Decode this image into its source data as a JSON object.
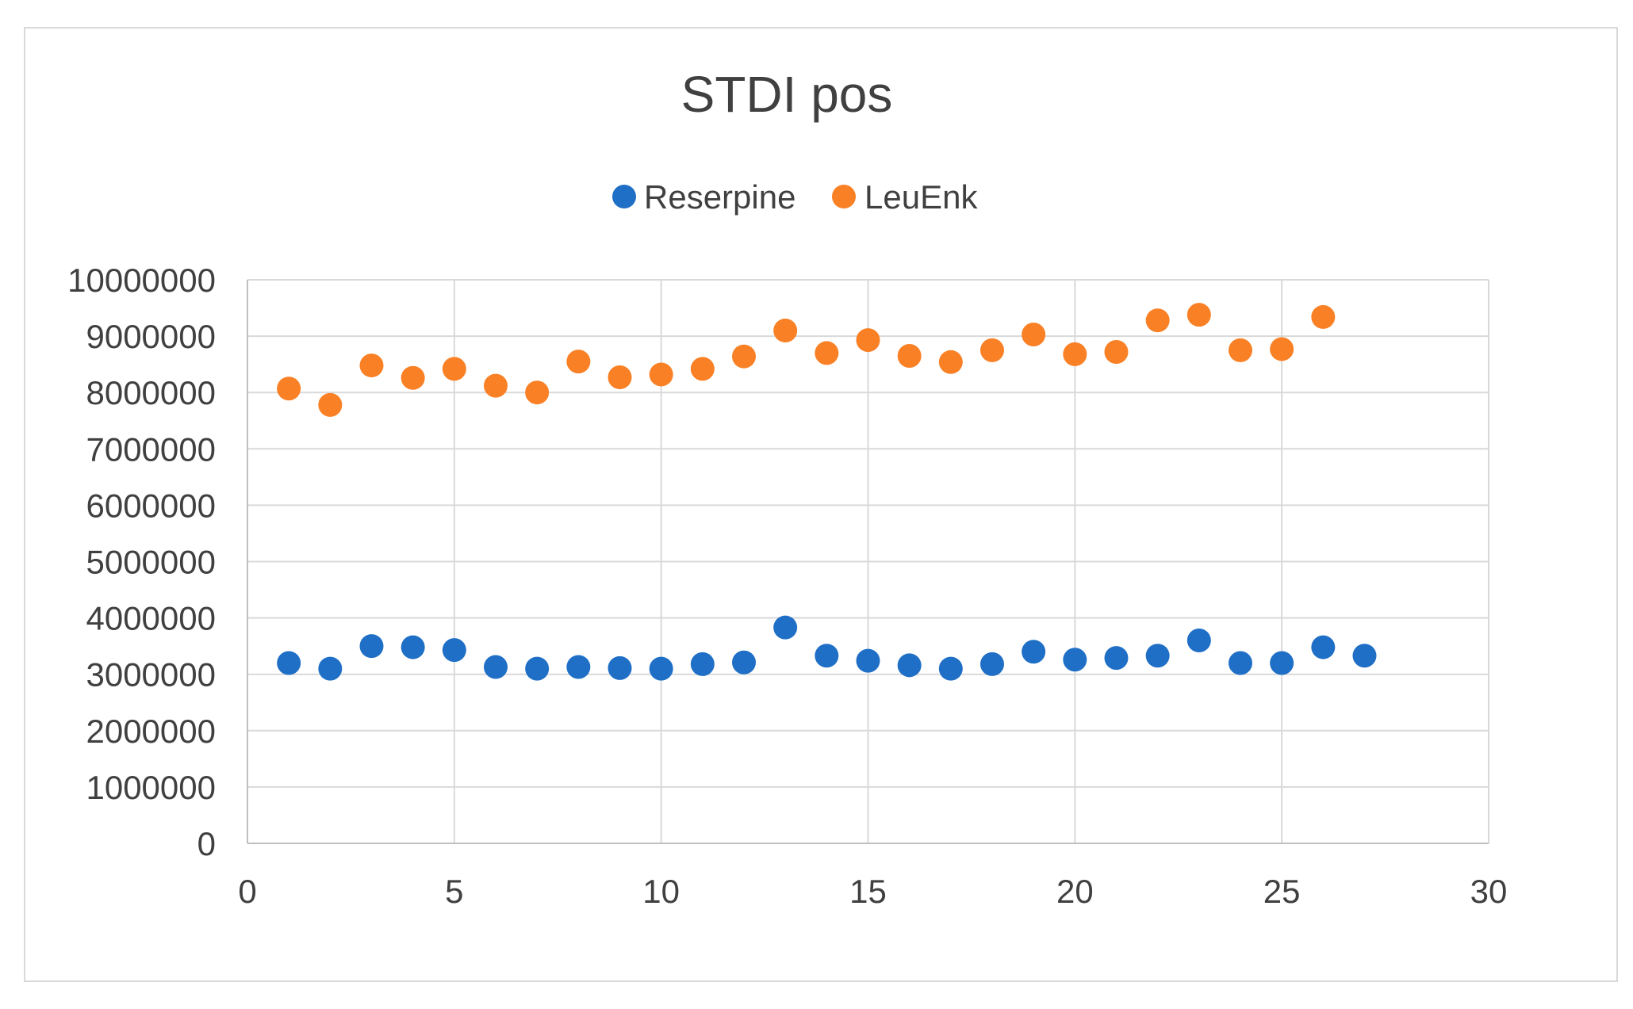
{
  "chart_data": {
    "type": "scatter",
    "title": "STDI pos",
    "xlabel": "",
    "ylabel": "",
    "xlim": [
      0,
      30
    ],
    "ylim": [
      0,
      10000000
    ],
    "x_ticks": [
      "0",
      "5",
      "10",
      "15",
      "20",
      "25",
      "30"
    ],
    "y_ticks": [
      "0",
      "1000000",
      "2000000",
      "3000000",
      "4000000",
      "5000000",
      "6000000",
      "7000000",
      "8000000",
      "9000000",
      "10000000"
    ],
    "grid": true,
    "legend_position": "top",
    "series": [
      {
        "name": "Reserpine",
        "color": "#1f6fc6",
        "x": [
          1,
          2,
          3,
          4,
          5,
          6,
          7,
          8,
          9,
          10,
          11,
          12,
          13,
          14,
          15,
          16,
          17,
          18,
          19,
          20,
          21,
          22,
          23,
          24,
          25,
          26,
          27
        ],
        "y": [
          3200000,
          3100000,
          3500000,
          3480000,
          3430000,
          3130000,
          3100000,
          3130000,
          3110000,
          3100000,
          3180000,
          3210000,
          3830000,
          3330000,
          3240000,
          3160000,
          3100000,
          3180000,
          3400000,
          3260000,
          3290000,
          3330000,
          3600000,
          3200000,
          3200000,
          3480000,
          3330000
        ]
      },
      {
        "name": "LeuEnk",
        "color": "#f98025",
        "x": [
          1,
          2,
          3,
          4,
          5,
          6,
          7,
          8,
          9,
          10,
          11,
          12,
          13,
          14,
          15,
          16,
          17,
          18,
          19,
          20,
          21,
          22,
          23,
          24,
          25,
          26
        ],
        "y": [
          8070000,
          7780000,
          8480000,
          8260000,
          8420000,
          8120000,
          8000000,
          8550000,
          8270000,
          8320000,
          8420000,
          8640000,
          9100000,
          8700000,
          8930000,
          8650000,
          8540000,
          8750000,
          9030000,
          8680000,
          8720000,
          9280000,
          9380000,
          8750000,
          8770000,
          9340000
        ]
      }
    ]
  }
}
